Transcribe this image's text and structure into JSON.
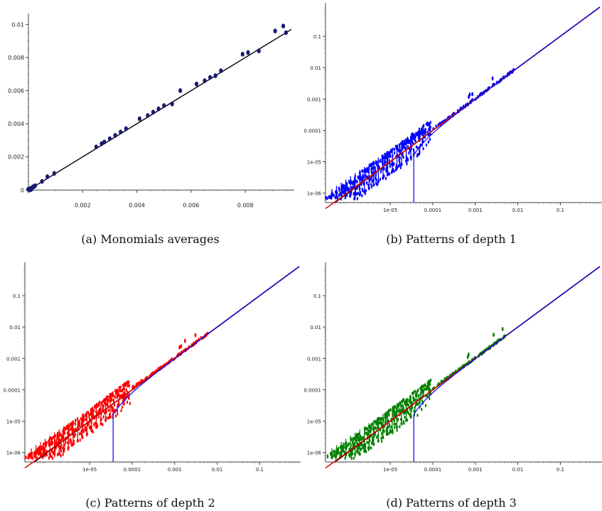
{
  "chart_data": [
    {
      "type": "scatter",
      "caption": "(a) Monomials averages",
      "xscale": "linear",
      "yscale": "linear",
      "xlim": [
        0,
        0.0097
      ],
      "ylim": [
        -0.0002,
        0.0104
      ],
      "xticks": [
        0.002,
        0.004,
        0.006,
        0.008
      ],
      "xtick_labels": [
        "0.002",
        "0.004",
        "0.006",
        "0.008"
      ],
      "yticks": [
        0,
        0.002,
        0.004,
        0.006,
        0.008,
        0.01
      ],
      "ytick_labels": [
        "0",
        "0.002",
        "0.004",
        "0.006",
        "0.008",
        "0.01"
      ],
      "grid": false,
      "colors": {
        "points": "#1a1a6e",
        "line": "#000000"
      },
      "lines": [
        {
          "name": "",
          "color": "#000000",
          "kind": "identity"
        }
      ],
      "points": [
        [
          2e-05,
          1e-05
        ],
        [
          5e-05,
          5e-05
        ],
        [
          8e-05,
          9e-05
        ],
        [
          0.0001,
          8e-05
        ],
        [
          0.00014,
          0.00015
        ],
        [
          0.00018,
          0.0002
        ],
        [
          0.0002,
          0.0002
        ],
        [
          0.00025,
          0.00026
        ],
        [
          0.0005,
          0.00052
        ],
        [
          0.0007,
          0.0008
        ],
        [
          0.00095,
          0.001
        ],
        [
          0.0025,
          0.0026
        ],
        [
          0.0027,
          0.0028
        ],
        [
          0.0028,
          0.0029
        ],
        [
          0.003,
          0.0031
        ],
        [
          0.0032,
          0.0033
        ],
        [
          0.0034,
          0.0035
        ],
        [
          0.0036,
          0.0037
        ],
        [
          0.0041,
          0.0043
        ],
        [
          0.0044,
          0.0045
        ],
        [
          0.0046,
          0.0047
        ],
        [
          0.0048,
          0.0049
        ],
        [
          0.005,
          0.0051
        ],
        [
          0.0053,
          0.0052
        ],
        [
          0.0056,
          0.006
        ],
        [
          0.0062,
          0.0064
        ],
        [
          0.0065,
          0.0066
        ],
        [
          0.0067,
          0.0068
        ],
        [
          0.0069,
          0.0069
        ],
        [
          0.0071,
          0.0072
        ],
        [
          0.0079,
          0.0082
        ],
        [
          0.0081,
          0.0083
        ],
        [
          0.0085,
          0.0084
        ],
        [
          0.0091,
          0.0096
        ],
        [
          0.0094,
          0.0099
        ],
        [
          0.0095,
          0.0095
        ]
      ]
    },
    {
      "type": "scatter",
      "caption": "(b) Patterns of depth 1",
      "xscale": "log",
      "yscale": "log",
      "xlim": [
        3e-07,
        0.85
      ],
      "ylim": [
        5e-07,
        0.85
      ],
      "xticks": [
        1e-05,
        0.0001,
        0.001,
        0.01,
        0.1
      ],
      "xtick_labels": [
        "1e-05",
        "0.0001",
        "0.001",
        "0.01",
        "0.1"
      ],
      "yticks": [
        1e-06,
        1e-05,
        0.0001,
        0.001,
        0.01,
        0.1
      ],
      "ytick_labels": [
        "1e-06",
        "1e-05",
        "0.0001",
        "0.001",
        "0.01",
        "0.1"
      ],
      "grid": false,
      "colors": {
        "points": "#0000ff",
        "black": "#000000",
        "red": "#e00000",
        "curve": "#0000ff"
      },
      "lines": [
        {
          "name": "",
          "color": "#000000",
          "kind": "identity"
        },
        {
          "name": "",
          "color": "#e00000",
          "kind": "upper",
          "c": 3e-05
        },
        {
          "name": "",
          "color": "#0000ff",
          "kind": "lower",
          "c": 3.5e-05
        }
      ],
      "points_color": "#0000ff",
      "cloud": {
        "x_min": 3e-07,
        "x_max": 9e-05,
        "spread": [
          0.35,
          1.25
        ],
        "upper_extent": 0.008
      }
    },
    {
      "type": "scatter",
      "caption": "(c) Patterns of depth 2",
      "xscale": "log",
      "yscale": "log",
      "xlim": [
        3e-07,
        0.85
      ],
      "ylim": [
        5e-07,
        0.85
      ],
      "xticks": [
        1e-05,
        0.0001,
        0.001,
        0.01,
        0.1
      ],
      "xtick_labels": [
        "1e-05",
        "0.0001",
        "0.001",
        "0.01",
        "0.1"
      ],
      "yticks": [
        1e-06,
        1e-05,
        0.0001,
        0.001,
        0.01,
        0.1
      ],
      "ytick_labels": [
        "1e-06",
        "1e-05",
        "0.0001",
        "0.001",
        "0.01",
        "0.1"
      ],
      "grid": false,
      "colors": {
        "points": "#ff0000",
        "black": "#000000",
        "red": "#e00000",
        "curve": "#0000ff"
      },
      "lines": [
        {
          "name": "",
          "color": "#000000",
          "kind": "identity"
        },
        {
          "name": "",
          "color": "#e00000",
          "kind": "upper",
          "c": 3e-05
        },
        {
          "name": "",
          "color": "#0000ff",
          "kind": "lower",
          "c": 3.5e-05
        }
      ],
      "points_color": "#ff0000",
      "cloud": {
        "x_min": 3e-07,
        "x_max": 9e-05,
        "spread": [
          0.35,
          1.25
        ],
        "upper_extent": 0.006
      }
    },
    {
      "type": "scatter",
      "caption": "(d) Patterns of depth 3",
      "xscale": "log",
      "yscale": "log",
      "xlim": [
        3e-07,
        0.85
      ],
      "ylim": [
        5e-07,
        0.85
      ],
      "xticks": [
        1e-05,
        0.0001,
        0.001,
        0.01,
        0.1
      ],
      "xtick_labels": [
        "1e-05",
        "0.0001",
        "0.001",
        "0.01",
        "0.1"
      ],
      "yticks": [
        1e-06,
        1e-05,
        0.0001,
        0.001,
        0.01,
        0.1
      ],
      "ytick_labels": [
        "1e-06",
        "1e-05",
        "0.0001",
        "0.001",
        "0.01",
        "0.1"
      ],
      "grid": false,
      "colors": {
        "points": "#008000",
        "black": "#000000",
        "red": "#e00000",
        "curve": "#0000ff"
      },
      "lines": [
        {
          "name": "",
          "color": "#000000",
          "kind": "identity"
        },
        {
          "name": "",
          "color": "#e00000",
          "kind": "upper",
          "c": 3e-05
        },
        {
          "name": "",
          "color": "#0000ff",
          "kind": "lower",
          "c": 3.5e-05
        }
      ],
      "points_color": "#008000",
      "cloud": {
        "x_min": 3e-07,
        "x_max": 9e-05,
        "spread": [
          0.35,
          1.25
        ],
        "upper_extent": 0.005
      }
    }
  ]
}
